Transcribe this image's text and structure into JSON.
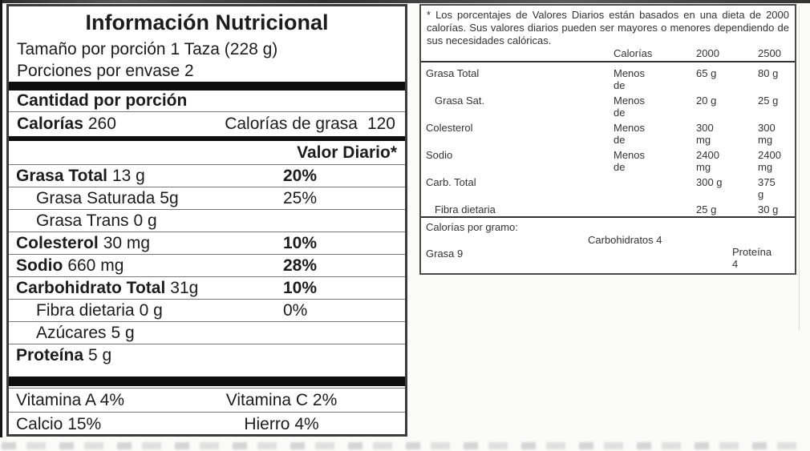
{
  "colors": {
    "text": "#1c1c1c",
    "bar": "#0e0e0e",
    "rule": "#777777",
    "panel_border": "#3b3b3b"
  },
  "left_panel": {
    "title": "Información Nutricional",
    "serving_size": "Tamaño por porción 1 Taza (228 g)",
    "servings_per_container": "Porciones por envase 2",
    "amount_per_serving": "Cantidad por porción",
    "calories_label": "Calorías",
    "calories_value": "260",
    "calories_fat_label": "Calorías de grasa",
    "calories_fat_value": "120",
    "daily_value_header": "Valor Diario*",
    "rows": [
      {
        "name": "Grasa Total",
        "amount": "13 g",
        "dv": "20%"
      },
      {
        "name": "Grasa Saturada",
        "amount": "5g",
        "dv": "25%"
      },
      {
        "name": "Grasa Trans",
        "amount": "0 g",
        "dv": ""
      },
      {
        "name": "Colesterol",
        "amount": "30 mg",
        "dv": "10%"
      },
      {
        "name": "Sodio",
        "amount": "660 mg",
        "dv": "28%"
      },
      {
        "name": "Carbohidrato Total",
        "amount": "31g",
        "dv": "10%"
      },
      {
        "name": "Fibra dietaria",
        "amount": "0 g",
        "dv": "0%"
      },
      {
        "name": "Azúcares",
        "amount": "5 g",
        "dv": ""
      },
      {
        "name": "Proteína",
        "amount": "5 g",
        "dv": ""
      }
    ],
    "vitamins": [
      {
        "left": "Vitamina A 4%",
        "right": "Vitamina C 2%"
      },
      {
        "left": "Calcio 15%",
        "right": "Hierro 4%"
      }
    ]
  },
  "right_panel": {
    "footnote": "* Los porcentajes de Valores Diarios están basados en una dieta de 2000 calorías. Sus valores diarios pueden ser mayores o menores dependiendo de sus necesidades calóricas.",
    "header": {
      "calories": "Calorías",
      "col_2000": "2000",
      "col_2500": "2500"
    },
    "rows": [
      {
        "label": "Grasa Total",
        "qualifier": "Menos\nde",
        "v2000": "65 g",
        "v2500": "80 g"
      },
      {
        "label": "Grasa Sat.",
        "qualifier": "Menos\nde",
        "v2000": "20 g",
        "v2500": "25 g"
      },
      {
        "label": "Colesterol",
        "qualifier": "Menos\nde",
        "v2000": "300\nmg",
        "v2500": "300\nmg"
      },
      {
        "label": "Sodio",
        "qualifier": "Menos\nde",
        "v2000": "2400\nmg",
        "v2500": "2400\nmg"
      },
      {
        "label": "Carb. Total",
        "qualifier": "",
        "v2000": "300 g",
        "v2500": "375\ng"
      },
      {
        "label": "Fibra dietaria",
        "qualifier": "",
        "v2000": "25 g",
        "v2500": "30 g"
      }
    ],
    "calories_per_gram": {
      "label": "Calorías por gramo:",
      "fat": "Grasa 9",
      "carbs": "Carbohidratos 4",
      "protein": "Proteína\n4"
    }
  }
}
